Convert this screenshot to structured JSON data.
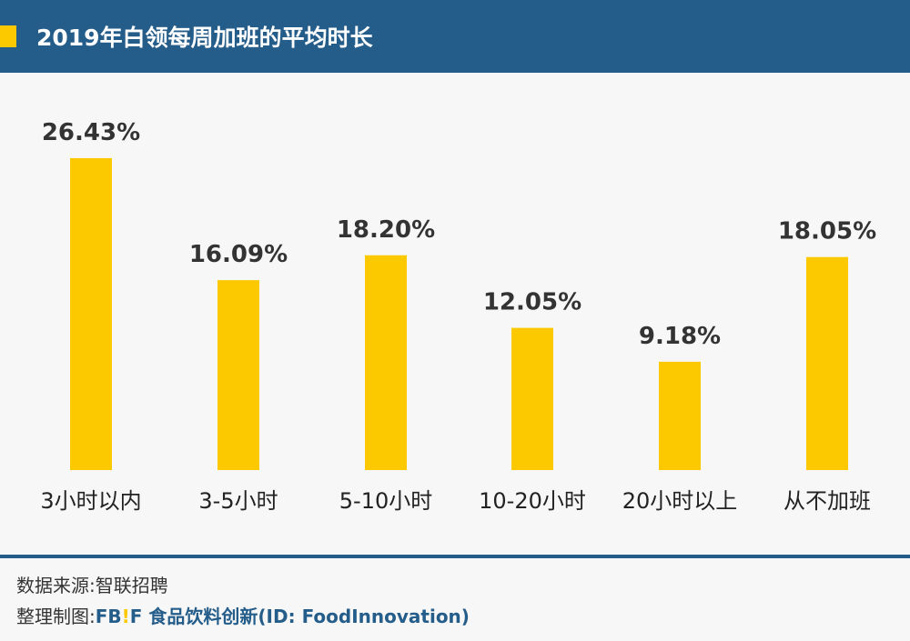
{
  "header": {
    "title": "2019年白领每周加班的平均时长"
  },
  "colors": {
    "header": "#255d8a",
    "bar": "#fcc800",
    "accent": "#fcc800"
  },
  "chart_data": {
    "type": "bar",
    "categories": [
      "3小时以内",
      "3-5小时",
      "5-10小时",
      "10-20小时",
      "20小时以上",
      "从不加班"
    ],
    "values": [
      26.43,
      16.09,
      18.2,
      12.05,
      9.18,
      18.05
    ],
    "labels": [
      "26.43%",
      "16.09%",
      "18.20%",
      "12.05%",
      "9.18%",
      "18.05%"
    ],
    "ylim": [
      0,
      30
    ],
    "grid": false
  },
  "footer": {
    "source_label": "数据来源:",
    "source": "智联招聘",
    "maker_label": "整理制图:",
    "brand_fb": "FB",
    "brand_bang": "!",
    "brand_f": "F",
    "brand_name": "食品饮料创新(ID: FoodInnovation)"
  }
}
